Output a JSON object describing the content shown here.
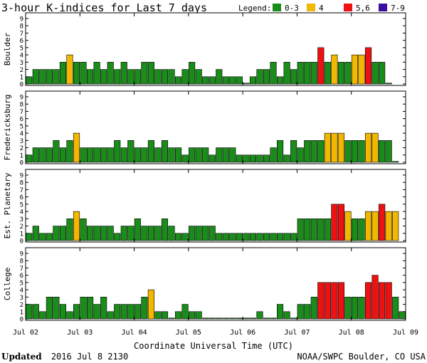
{
  "chart_data": {
    "type": "bar",
    "title": "3-hour K-indices for Last 7 days",
    "legend": {
      "label": "Legend:",
      "entries": [
        {
          "name": "0-3",
          "color": "#1a8c1a"
        },
        {
          "name": "4",
          "color": "#f2b800"
        },
        {
          "name": "5,6",
          "color": "#ee1111"
        },
        {
          "name": "7-9",
          "color": "#3a0fa0"
        }
      ]
    },
    "xlabel": "Coordinate Universal Time (UTC)",
    "x_ticks": [
      "Jul 02",
      "Jul 03",
      "Jul 04",
      "Jul 05",
      "Jul 06",
      "Jul 07",
      "Jul 08",
      "Jul 09"
    ],
    "ylim": [
      0,
      9
    ],
    "y_ticks": [
      "0",
      "1",
      "2",
      "3",
      "4",
      "5",
      "6",
      "7",
      "8",
      "9"
    ],
    "panels": [
      {
        "name": "Boulder",
        "values": [
          1,
          2,
          2,
          2,
          2,
          3,
          4,
          3,
          3,
          2,
          3,
          2,
          3,
          2,
          3,
          2,
          2,
          3,
          3,
          2,
          2,
          2,
          1,
          2,
          3,
          2,
          1,
          1,
          2,
          1,
          1,
          1,
          0,
          1,
          2,
          2,
          3,
          1,
          3,
          2,
          3,
          3,
          3,
          5,
          3,
          4,
          3,
          3,
          4,
          4,
          5,
          3,
          3,
          0
        ]
      },
      {
        "name": "Fredericksburg",
        "values": [
          1,
          2,
          2,
          2,
          3,
          2,
          3,
          4,
          2,
          2,
          2,
          2,
          2,
          3,
          2,
          3,
          2,
          2,
          3,
          2,
          3,
          2,
          2,
          1,
          2,
          2,
          2,
          1,
          2,
          2,
          2,
          1,
          1,
          1,
          1,
          1,
          2,
          3,
          1,
          3,
          2,
          3,
          3,
          3,
          4,
          4,
          4,
          3,
          3,
          3,
          4,
          4,
          3,
          3,
          0
        ]
      },
      {
        "name": "Est. Planetary",
        "values": [
          1,
          2,
          1,
          1,
          2,
          2,
          3,
          4,
          3,
          2,
          2,
          2,
          2,
          1,
          2,
          2,
          3,
          2,
          2,
          2,
          3,
          2,
          1,
          1,
          2,
          2,
          2,
          2,
          1,
          1,
          1,
          1,
          1,
          1,
          1,
          1,
          1,
          1,
          1,
          1,
          3,
          3,
          3,
          3,
          3,
          5,
          5,
          4,
          3,
          3,
          4,
          4,
          5,
          4,
          4
        ]
      },
      {
        "name": "College",
        "values": [
          2,
          2,
          1,
          3,
          3,
          2,
          1,
          2,
          3,
          3,
          2,
          3,
          1,
          2,
          2,
          2,
          2,
          3,
          4,
          1,
          1,
          0,
          1,
          2,
          1,
          1,
          0,
          0,
          0,
          0,
          0,
          0,
          0,
          0,
          1,
          0,
          0,
          2,
          1,
          0,
          2,
          2,
          3,
          5,
          5,
          5,
          5,
          3,
          3,
          3,
          5,
          6,
          5,
          5,
          3,
          1
        ]
      }
    ]
  },
  "footer": {
    "updated_label": "Updated",
    "updated_value": "2016 Jul  8 2130",
    "credit": "NOAA/SWPC Boulder, CO USA"
  }
}
